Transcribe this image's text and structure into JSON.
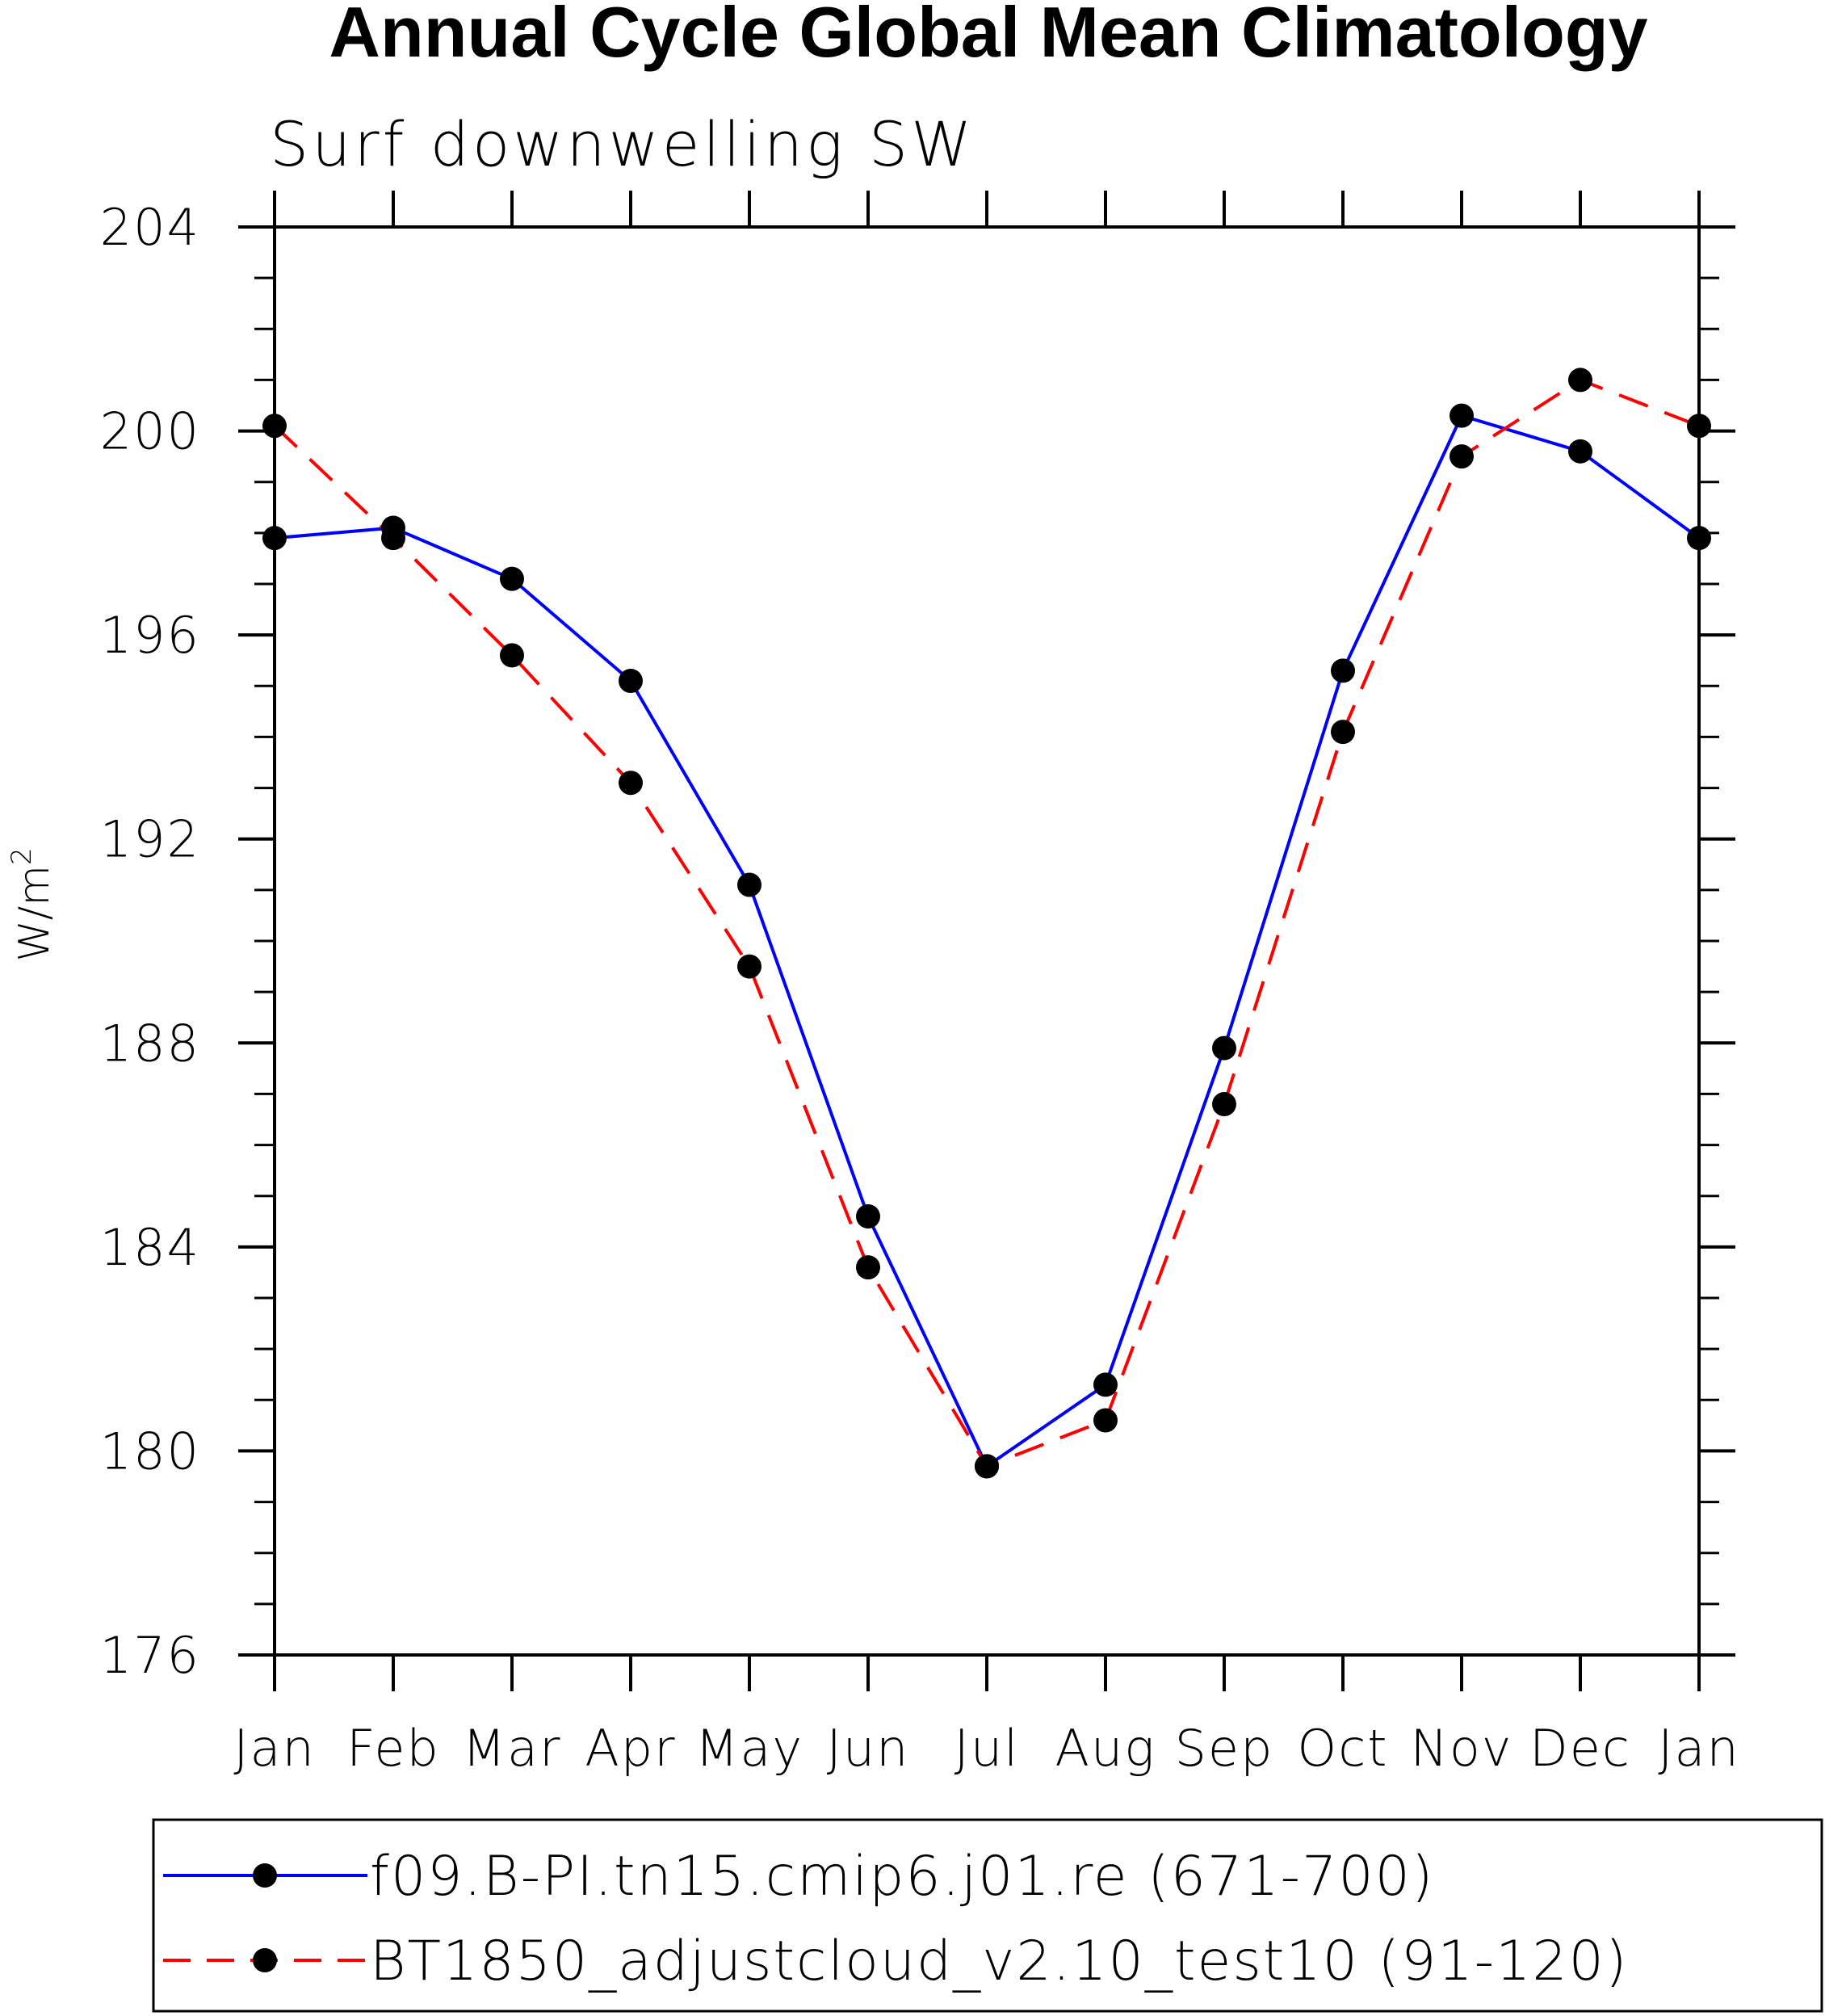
{
  "chart_data": {
    "type": "line",
    "title": "Annual Cycle Global Mean Climatology",
    "subtitle": "Surf downwelling SW",
    "ylabel": "W/m",
    "ylabel_superscript": "2",
    "xlabel": "",
    "categories": [
      "Jan",
      "Feb",
      "Mar",
      "Apr",
      "May",
      "Jun",
      "Jul",
      "Aug",
      "Sep",
      "Oct",
      "Nov",
      "Dec",
      "Jan"
    ],
    "ylim": [
      176,
      204
    ],
    "yticks": [
      176,
      180,
      184,
      188,
      192,
      196,
      200,
      204
    ],
    "y_minor_step": 1,
    "grid": false,
    "legend_position": "bottom",
    "series": [
      {
        "name": "f09.B-PI.tn15.cmip6.j01.re (671-700)",
        "color": "#0000ff",
        "line_style": "solid",
        "marker": "filled-circle",
        "values": [
          197.9,
          198.1,
          197.1,
          195.1,
          191.1,
          184.6,
          179.7,
          181.3,
          187.9,
          195.3,
          200.3,
          199.6,
          197.9
        ]
      },
      {
        "name": "BT1850_adjustcloud_v2.10_test10 (91-120)",
        "color": "#ff0000",
        "line_style": "dashed",
        "marker": "filled-circle",
        "values": [
          200.1,
          197.9,
          195.6,
          193.1,
          189.5,
          183.6,
          179.7,
          180.6,
          186.8,
          194.1,
          199.5,
          201.0,
          200.1
        ]
      }
    ]
  }
}
